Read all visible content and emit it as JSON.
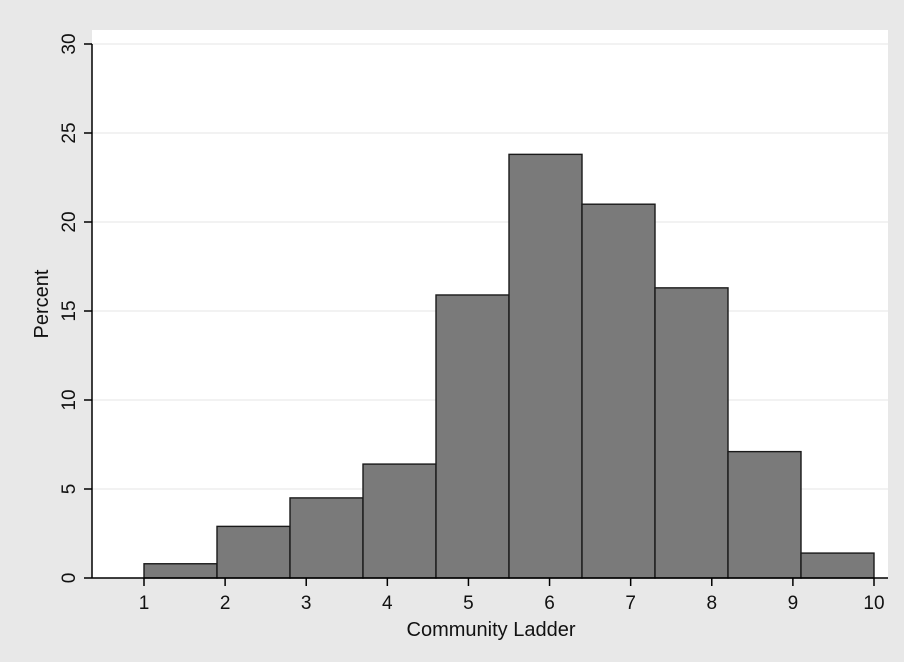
{
  "chart_data": {
    "type": "bar",
    "histogram": true,
    "xlabel": "Community Ladder",
    "ylabel": "Percent",
    "ylim": [
      0,
      30
    ],
    "yticks": [
      0,
      5,
      10,
      15,
      20,
      25,
      30
    ],
    "xlim": [
      1,
      10
    ],
    "xticks": [
      1,
      2,
      3,
      4,
      5,
      6,
      7,
      8,
      9,
      10
    ],
    "grid": true,
    "bar_color": "#7a7a7a",
    "bins": [
      {
        "start": 1.0,
        "end": 1.9,
        "value": 0.8
      },
      {
        "start": 1.9,
        "end": 2.8,
        "value": 2.9
      },
      {
        "start": 2.8,
        "end": 3.7,
        "value": 4.5
      },
      {
        "start": 3.7,
        "end": 4.6,
        "value": 6.4
      },
      {
        "start": 4.6,
        "end": 5.5,
        "value": 15.9
      },
      {
        "start": 5.5,
        "end": 6.4,
        "value": 23.8
      },
      {
        "start": 6.4,
        "end": 7.3,
        "value": 21.0
      },
      {
        "start": 7.3,
        "end": 8.2,
        "value": 16.3
      },
      {
        "start": 8.2,
        "end": 9.1,
        "value": 7.1
      },
      {
        "start": 9.1,
        "end": 10.0,
        "value": 1.4
      }
    ]
  }
}
